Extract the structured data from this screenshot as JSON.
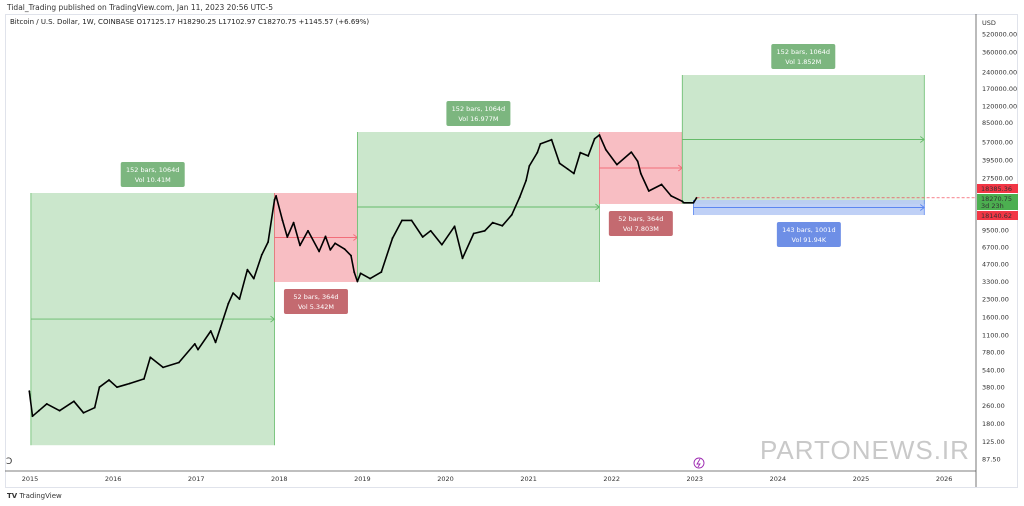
{
  "header": {
    "published": "Tidal_Trading published on TradingView.com, Jan 11, 2023 20:56 UTC-5",
    "legend": "Bitcoin / U.S. Dollar, 1W, COINBASE  O17125.17  H18290.25  L17102.97  C18270.75  +1145.57 (+6.69%)"
  },
  "footer": {
    "logo_text": "TradingView",
    "watermark": "PARTONEWS.IR"
  },
  "chart_data": {
    "type": "line",
    "yscale": "log",
    "currency": "USD",
    "ylim": [
      87.5,
      520000
    ],
    "xlim": [
      "2014-12-20",
      "2026-02-01"
    ],
    "grid": false,
    "y_ticks": [
      "520000.00",
      "360000.00",
      "240000.00",
      "170000.00",
      "120000.00",
      "85000.00",
      "57000.00",
      "39500.00",
      "27500.00",
      "9500.00",
      "6700.00",
      "4700.00",
      "3300.00",
      "2300.00",
      "1600.00",
      "1100.00",
      "780.00",
      "540.00",
      "380.00",
      "260.00",
      "180.00",
      "125.00",
      "87.50"
    ],
    "y_tick_values": [
      520000,
      360000,
      240000,
      170000,
      120000,
      85000,
      57000,
      39500,
      27500,
      9500,
      6700,
      4700,
      3300,
      2300,
      1600,
      1100,
      780,
      540,
      380,
      260,
      180,
      125,
      87.5
    ],
    "x_ticks": [
      "2015",
      "2016",
      "2017",
      "2018",
      "2019",
      "2020",
      "2021",
      "2022",
      "2023",
      "2024",
      "2025",
      "2026"
    ],
    "series": [
      {
        "color": "#000000",
        "points": [
          [
            "2014-12-29",
            350
          ],
          [
            "2015-01-12",
            210
          ],
          [
            "2015-02-09",
            235
          ],
          [
            "2015-03-16",
            270
          ],
          [
            "2015-05-11",
            235
          ],
          [
            "2015-07-13",
            285
          ],
          [
            "2015-08-24",
            225
          ],
          [
            "2015-10-12",
            250
          ],
          [
            "2015-11-02",
            380
          ],
          [
            "2015-12-14",
            440
          ],
          [
            "2016-01-18",
            380
          ],
          [
            "2016-03-14",
            410
          ],
          [
            "2016-05-16",
            450
          ],
          [
            "2016-06-13",
            700
          ],
          [
            "2016-08-08",
            570
          ],
          [
            "2016-10-17",
            630
          ],
          [
            "2016-12-26",
            920
          ],
          [
            "2017-01-09",
            820
          ],
          [
            "2017-03-06",
            1200
          ],
          [
            "2017-03-27",
            950
          ],
          [
            "2017-05-22",
            2100
          ],
          [
            "2017-06-12",
            2600
          ],
          [
            "2017-07-10",
            2300
          ],
          [
            "2017-08-14",
            4200
          ],
          [
            "2017-09-11",
            3500
          ],
          [
            "2017-10-16",
            5700
          ],
          [
            "2017-11-13",
            7400
          ],
          [
            "2017-12-11",
            17500
          ],
          [
            "2017-12-18",
            19000
          ],
          [
            "2018-01-15",
            11500
          ],
          [
            "2018-02-05",
            8200
          ],
          [
            "2018-03-05",
            11000
          ],
          [
            "2018-04-02",
            6900
          ],
          [
            "2018-05-07",
            9300
          ],
          [
            "2018-06-25",
            6100
          ],
          [
            "2018-07-23",
            8300
          ],
          [
            "2018-08-13",
            6300
          ],
          [
            "2018-09-03",
            7200
          ],
          [
            "2018-10-15",
            6400
          ],
          [
            "2018-11-12",
            5600
          ],
          [
            "2018-11-26",
            4000
          ],
          [
            "2018-12-10",
            3300
          ],
          [
            "2018-12-24",
            3900
          ],
          [
            "2019-02-04",
            3500
          ],
          [
            "2019-03-25",
            4000
          ],
          [
            "2019-05-13",
            8000
          ],
          [
            "2019-06-24",
            11500
          ],
          [
            "2019-08-05",
            11500
          ],
          [
            "2019-09-23",
            8200
          ],
          [
            "2019-10-28",
            9300
          ],
          [
            "2019-12-16",
            7000
          ],
          [
            "2020-02-10",
            10200
          ],
          [
            "2020-03-16",
            5300
          ],
          [
            "2020-05-04",
            8800
          ],
          [
            "2020-06-22",
            9300
          ],
          [
            "2020-07-27",
            11000
          ],
          [
            "2020-09-07",
            10300
          ],
          [
            "2020-10-19",
            12900
          ],
          [
            "2020-11-23",
            18500
          ],
          [
            "2020-12-21",
            26000
          ],
          [
            "2021-01-04",
            35000
          ],
          [
            "2021-02-08",
            46000
          ],
          [
            "2021-02-22",
            55000
          ],
          [
            "2021-04-12",
            60000
          ],
          [
            "2021-05-17",
            37000
          ],
          [
            "2021-06-21",
            33000
          ],
          [
            "2021-07-19",
            30000
          ],
          [
            "2021-08-16",
            46000
          ],
          [
            "2021-09-20",
            43000
          ],
          [
            "2021-10-18",
            61000
          ],
          [
            "2021-11-08",
            66000
          ],
          [
            "2021-12-06",
            49000
          ],
          [
            "2022-01-24",
            36000
          ],
          [
            "2022-03-28",
            46500
          ],
          [
            "2022-04-25",
            38500
          ],
          [
            "2022-05-09",
            30000
          ],
          [
            "2022-06-13",
            21000
          ],
          [
            "2022-08-08",
            24000
          ],
          [
            "2022-09-19",
            19000
          ],
          [
            "2022-11-07",
            17000
          ],
          [
            "2022-11-14",
            16500
          ],
          [
            "2022-12-26",
            16500
          ],
          [
            "2023-01-09",
            18270.75
          ]
        ]
      }
    ],
    "price_labels": [
      {
        "text": "18385.36",
        "color": "#f23645"
      },
      {
        "text": "18270.75",
        "sub": "3d 23h",
        "color": "#4caf50"
      },
      {
        "text": "18140.62",
        "color": "#f23645"
      }
    ],
    "last_price": 18270.75,
    "ranges": [
      {
        "from": "2015-01-05",
        "to": "2017-12-11",
        "low": 116,
        "high": 20150,
        "color": "green",
        "label1": "152 bars, 1064d",
        "label2": "Vol 10.41M",
        "label_pos": "top"
      },
      {
        "from": "2017-12-11",
        "to": "2018-12-10",
        "low": 3266,
        "high": 20150,
        "color": "red",
        "label1": "52 bars, 364d",
        "label2": "Vol 5.342M",
        "label_pos": "bottom"
      },
      {
        "from": "2018-12-10",
        "to": "2021-11-08",
        "low": 3266,
        "high": 70150,
        "color": "green",
        "label1": "152 bars, 1064d",
        "label2": "Vol 16.977M",
        "label_pos": "top"
      },
      {
        "from": "2021-11-08",
        "to": "2022-11-07",
        "low": 16100,
        "high": 70150,
        "color": "red",
        "label1": "52 bars, 364d",
        "label2": "Vol 7.803M",
        "label_pos": "bottom"
      },
      {
        "from": "2022-11-07",
        "to": "2025-10-06",
        "low": 16100,
        "high": 225000,
        "color": "green",
        "label1": "152 bars, 1064d",
        "label2": "Vol 1.852M",
        "label_pos": "top"
      },
      {
        "from": "2022-12-26",
        "to": "2025-10-06",
        "low": 12850,
        "high": 17460,
        "color": "blue",
        "label1": "143 bars, 1001d",
        "label2": "Vol 91.94K",
        "label_pos": "bottom"
      }
    ],
    "colors": {
      "green_fill": "#c8e6c9",
      "green_line": "#66bb6a",
      "green_label": "#7cb67f",
      "red_fill": "#f8bbc0",
      "red_line": "#f26e7a",
      "red_label": "#c46a70",
      "blue_fill": "#b8cbf5",
      "blue_line": "#5b86f0",
      "blue_label": "#6e8fe6"
    }
  }
}
